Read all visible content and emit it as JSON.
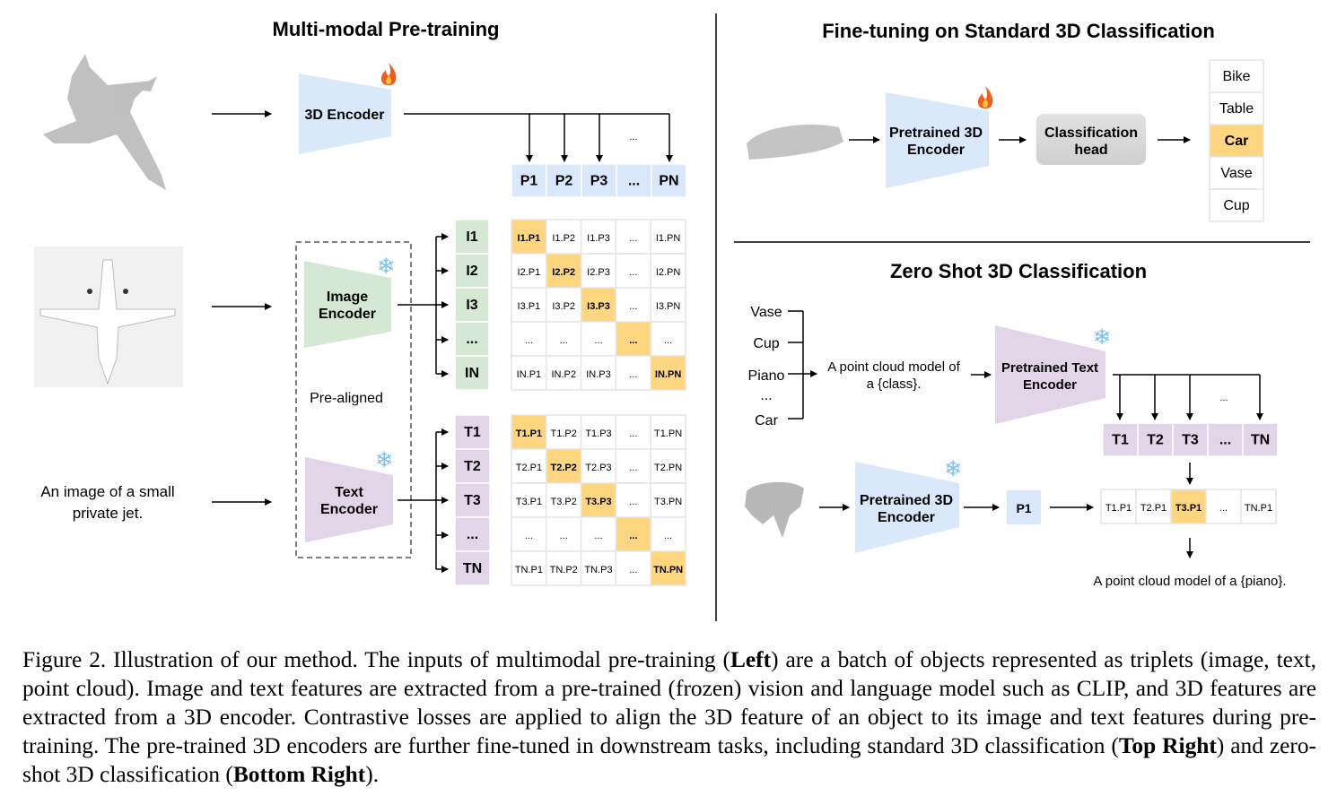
{
  "colors": {
    "encoder_3d": "#dae8fc",
    "image_encoder": "#d5e8d4",
    "text_encoder": "#e1d5e7",
    "highlight": "#fdd67f",
    "head": "#d9d9d9",
    "cell_border": "#e6e6e6"
  },
  "icons": {
    "trainable": "fire-icon",
    "frozen": "snowflake-icon"
  },
  "left": {
    "title": "Multi-modal Pre-training",
    "encoder_3d": "3D Encoder",
    "image_encoder": [
      "Image",
      "Encoder"
    ],
    "text_encoder": [
      "Text",
      "Encoder"
    ],
    "pre_aligned": "Pre-aligned",
    "text_input": [
      "An image of a small",
      "private jet."
    ],
    "dots": "...",
    "p_row": [
      "P1",
      "P2",
      "P3",
      "...",
      "PN"
    ],
    "i_col": [
      "I1",
      "I2",
      "I3",
      "...",
      "IN"
    ],
    "t_col": [
      "T1",
      "T2",
      "T3",
      "...",
      "TN"
    ],
    "image_matrix": [
      [
        "I1.P1",
        "I1.P2",
        "I1.P3",
        "...",
        "I1.PN"
      ],
      [
        "I2.P1",
        "I2.P2",
        "I2.P3",
        "...",
        "I2.PN"
      ],
      [
        "I3.P1",
        "I3.P2",
        "I3.P3",
        "...",
        "I3.PN"
      ],
      [
        "...",
        "...",
        "...",
        "...",
        "..."
      ],
      [
        "IN.P1",
        "IN.P2",
        "IN.P3",
        "...",
        "IN.PN"
      ]
    ],
    "text_matrix": [
      [
        "T1.P1",
        "T1.P2",
        "T1.P3",
        "...",
        "T1.PN"
      ],
      [
        "T2.P1",
        "T2.P2",
        "T2.P3",
        "...",
        "T2.PN"
      ],
      [
        "T3.P1",
        "T3.P2",
        "T3.P3",
        "...",
        "T3.PN"
      ],
      [
        "...",
        "...",
        "...",
        "...",
        "..."
      ],
      [
        "TN.P1",
        "TN.P2",
        "TN.P3",
        "...",
        "TN.PN"
      ]
    ]
  },
  "top_right": {
    "title": "Fine-tuning on Standard 3D Classification",
    "encoder": [
      "Pretrained 3D",
      "Encoder"
    ],
    "head": [
      "Classification",
      "head"
    ],
    "classes": [
      "Bike",
      "Table",
      "Car",
      "Vase",
      "Cup"
    ],
    "selected_class": "Car"
  },
  "bottom_right": {
    "title": "Zero Shot 3D Classification",
    "classes": [
      "Vase",
      "Cup",
      "Piano",
      "...",
      "Car"
    ],
    "prompt": [
      "A point cloud model of",
      "a {class}."
    ],
    "text_encoder": [
      "Pretrained Text",
      "Encoder"
    ],
    "t_row": [
      "T1",
      "T2",
      "T3",
      "...",
      "TN"
    ],
    "dots": "...",
    "encoder": [
      "Pretrained 3D",
      "Encoder"
    ],
    "p1": "P1",
    "scores": [
      "T1.P1",
      "T2.P1",
      "T3.P1",
      "...",
      "TN.P1"
    ],
    "selected_score": "T3.P1",
    "result": "A point cloud model of a {piano}."
  },
  "caption": [
    {
      "text": "Figure 2. Illustration of our method. The inputs of multimodal pre-training (",
      "bold": false
    },
    {
      "text": "Left",
      "bold": true
    },
    {
      "text": ") are a batch of objects represented as triplets (image, text, point cloud). Image and text features are extracted from a pre-trained (frozen) vision and language model such as CLIP, and 3D features are extracted from a 3D encoder. Contrastive losses are applied to align the 3D feature of an object to its image and text features during pre-training. The pre-trained 3D encoders are further fine-tuned in downstream tasks, including standard 3D classification (",
      "bold": false
    },
    {
      "text": "Top Right",
      "bold": true
    },
    {
      "text": ") and zero-shot 3D classification (",
      "bold": false
    },
    {
      "text": "Bottom Right",
      "bold": true
    },
    {
      "text": ").",
      "bold": false
    }
  ]
}
